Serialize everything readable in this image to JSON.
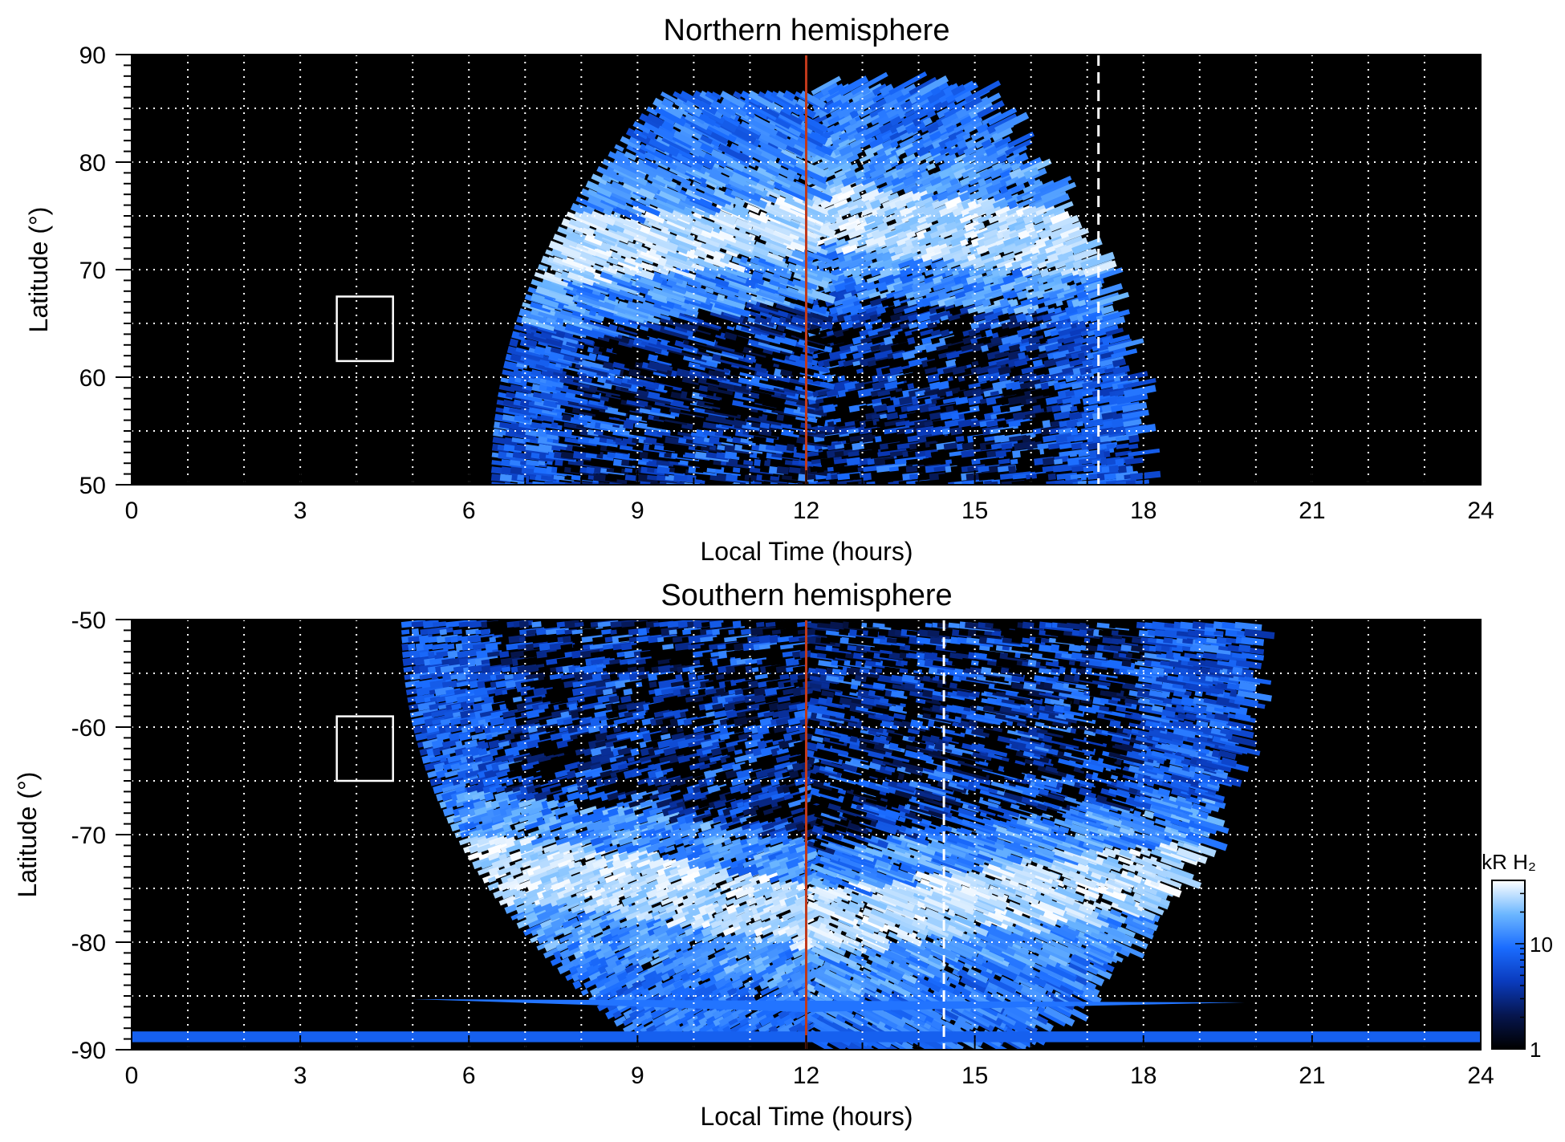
{
  "chart_data": [
    {
      "type": "heatmap",
      "title": "Northern hemisphere",
      "xlabel": "Local Time (hours)",
      "ylabel": "Latitude (°)",
      "xlim": [
        0,
        24
      ],
      "ylim": [
        50,
        90
      ],
      "xticks": [
        0,
        3,
        6,
        9,
        12,
        15,
        18,
        21,
        24
      ],
      "yticks": [
        50,
        60,
        70,
        80,
        90
      ],
      "grid": true,
      "noon_line_local_time": 12,
      "dashed_line_local_time": 17.2,
      "emission_region": {
        "local_time_range": [
          6.4,
          17.8
        ],
        "latitude_range": [
          50,
          87
        ]
      },
      "main_oval": {
        "latitude_dawn": 72,
        "latitude_noon": 75,
        "latitude_dusk": 72
      },
      "box": {
        "local_time_range": [
          3.65,
          4.65
        ],
        "latitude_range": [
          61.5,
          67.5
        ]
      }
    },
    {
      "type": "heatmap",
      "title": "Southern hemisphere",
      "xlabel": "Local Time (hours)",
      "ylabel": "Latitude (°)",
      "xlim": [
        0,
        24
      ],
      "ylim": [
        -90,
        -50
      ],
      "xticks": [
        0,
        3,
        6,
        9,
        12,
        15,
        18,
        21,
        24
      ],
      "yticks": [
        -90,
        -80,
        -70,
        -60,
        -50
      ],
      "grid": true,
      "noon_line_local_time": 12,
      "dashed_line_local_time": 14.45,
      "emission_region": {
        "local_time_range": [
          4.8,
          19.8
        ],
        "latitude_range": [
          -89,
          -50
        ]
      },
      "main_oval": {
        "latitude_dawn": -73,
        "latitude_noon": -78,
        "latitude_dusk": -73
      },
      "box": {
        "local_time_range": [
          3.65,
          4.65
        ],
        "latitude_range": [
          -65,
          -59
        ]
      }
    }
  ],
  "colorbar": {
    "label": "kR H₂",
    "scale": "log",
    "range": [
      1,
      40
    ],
    "ticks": [
      1,
      10
    ],
    "colors": [
      "#000000",
      "#06164f",
      "#0a3bbd",
      "#1a6cff",
      "#6cb7ff",
      "#ffffff"
    ]
  },
  "colors": {
    "background": "#000000",
    "noon_line": "#c0391b",
    "grid": "#ffffff"
  }
}
